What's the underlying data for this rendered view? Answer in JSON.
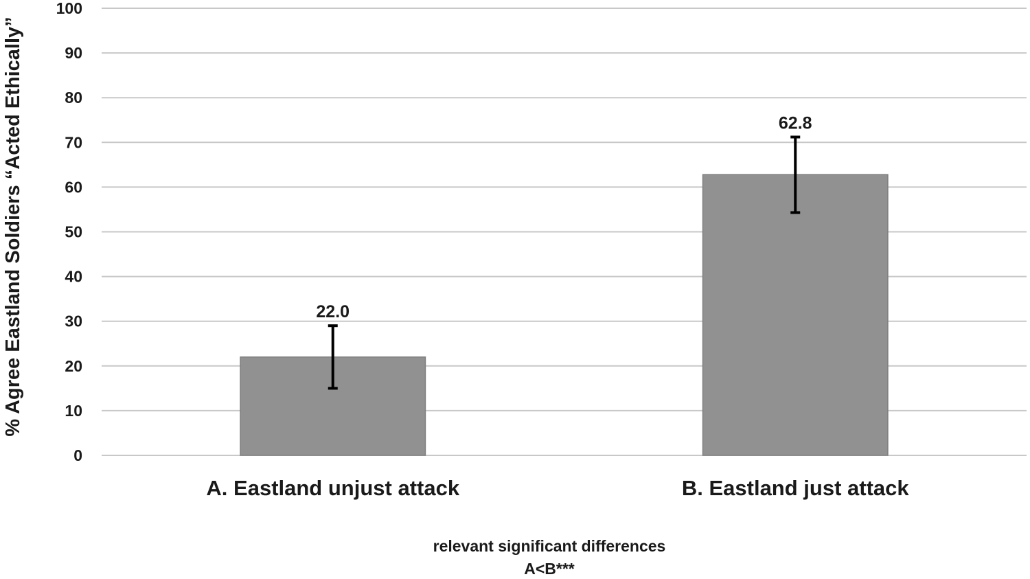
{
  "chart_data": {
    "type": "bar",
    "categories": [
      "A. Eastland unjust attack",
      "B. Eastland just attack"
    ],
    "values": [
      22.0,
      62.8
    ],
    "data_labels": [
      "22.0",
      "62.8"
    ],
    "error_bars": [
      {
        "low": 15.0,
        "high": 29.0
      },
      {
        "low": 54.3,
        "high": 71.2
      }
    ],
    "title": "",
    "xlabel": "",
    "ylabel": "% Agree Eastland Soldiers “Acted Ethically”",
    "ylim": [
      0,
      100
    ],
    "yticks": [
      0,
      10,
      20,
      30,
      40,
      50,
      60,
      70,
      80,
      90,
      100
    ],
    "grid": true,
    "legend": "none",
    "bar_color": "#919191",
    "annotations": [
      "relevant significant differences",
      "A<B***"
    ]
  }
}
